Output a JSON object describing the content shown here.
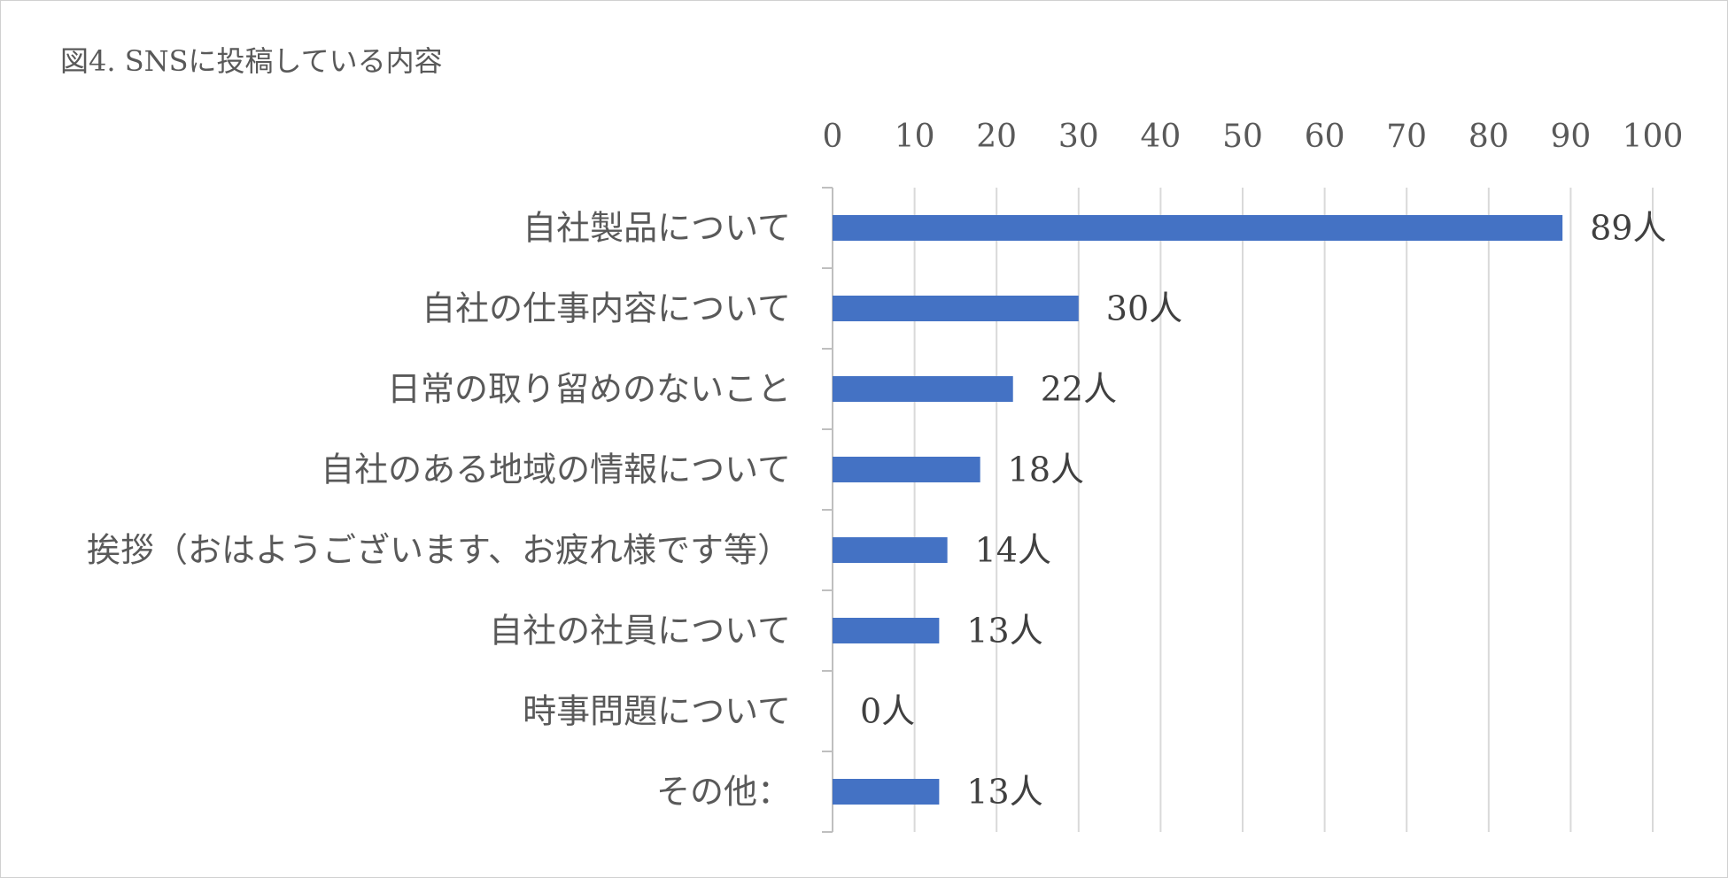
{
  "chart_data": {
    "type": "bar",
    "orientation": "horizontal",
    "title": "図4. SNSに投稿している内容",
    "xlabel": "",
    "ylabel": "",
    "xlim": [
      0,
      100
    ],
    "x_ticks": [
      "0",
      "10",
      "20",
      "30",
      "40",
      "50",
      "60",
      "70",
      "80",
      "90",
      "100"
    ],
    "x_axis_position": "top",
    "grid": true,
    "legend": "none",
    "categories": [
      "自社製品について",
      "自社の仕事内容について",
      "日常の取り留めのないこと",
      "自社のある地域の情報について",
      "挨拶（おはようございます、お疲れ様です等）",
      "自社の社員について",
      "時事問題について",
      "その他："
    ],
    "values": [
      89,
      30,
      22,
      18,
      14,
      13,
      0,
      13
    ],
    "data_labels": [
      "89人",
      "30人",
      "22人",
      "18人",
      "14人",
      "13人",
      "0人",
      "13人"
    ],
    "bar_color": "#4472C4"
  }
}
